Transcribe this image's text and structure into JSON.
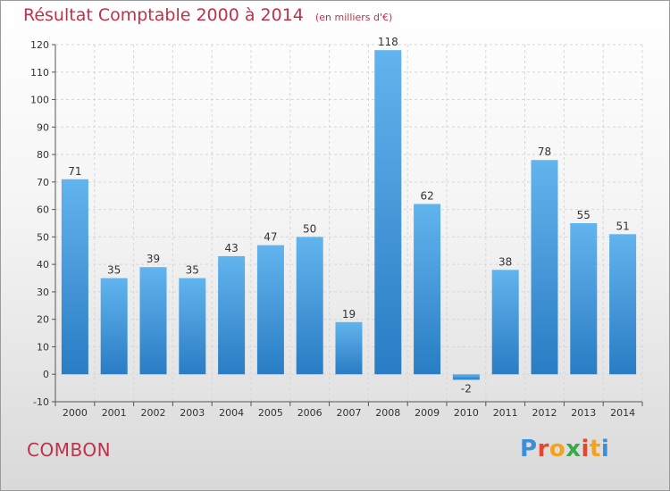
{
  "title": "Résultat Comptable 2000 à 2014",
  "subtitle": "(en milliers d'€)",
  "commune": "COMBON",
  "logo": {
    "text": "Proxiti",
    "letter_colors": [
      "#3a8fd8",
      "#e8452c",
      "#f2a31b",
      "#3aa848",
      "#e8452c",
      "#f2a31b",
      "#3a8fd8"
    ]
  },
  "colors": {
    "title": "#c0304a",
    "bar_top": "#62b4ee",
    "bar_bottom": "#2a7cc4",
    "grid": "#d6d6d6",
    "axis": "#555555"
  },
  "chart_data": {
    "type": "bar",
    "categories": [
      "2000",
      "2001",
      "2002",
      "2003",
      "2004",
      "2005",
      "2006",
      "2007",
      "2008",
      "2009",
      "2010",
      "2011",
      "2012",
      "2013",
      "2014"
    ],
    "values": [
      71,
      35,
      39,
      35,
      43,
      47,
      50,
      19,
      118,
      62,
      -2,
      38,
      78,
      55,
      51
    ],
    "ylim": [
      -10,
      120
    ],
    "yticks": [
      -10,
      0,
      10,
      20,
      30,
      40,
      50,
      60,
      70,
      80,
      90,
      100,
      110,
      120
    ],
    "grid": true,
    "xlabel": "",
    "ylabel": ""
  }
}
